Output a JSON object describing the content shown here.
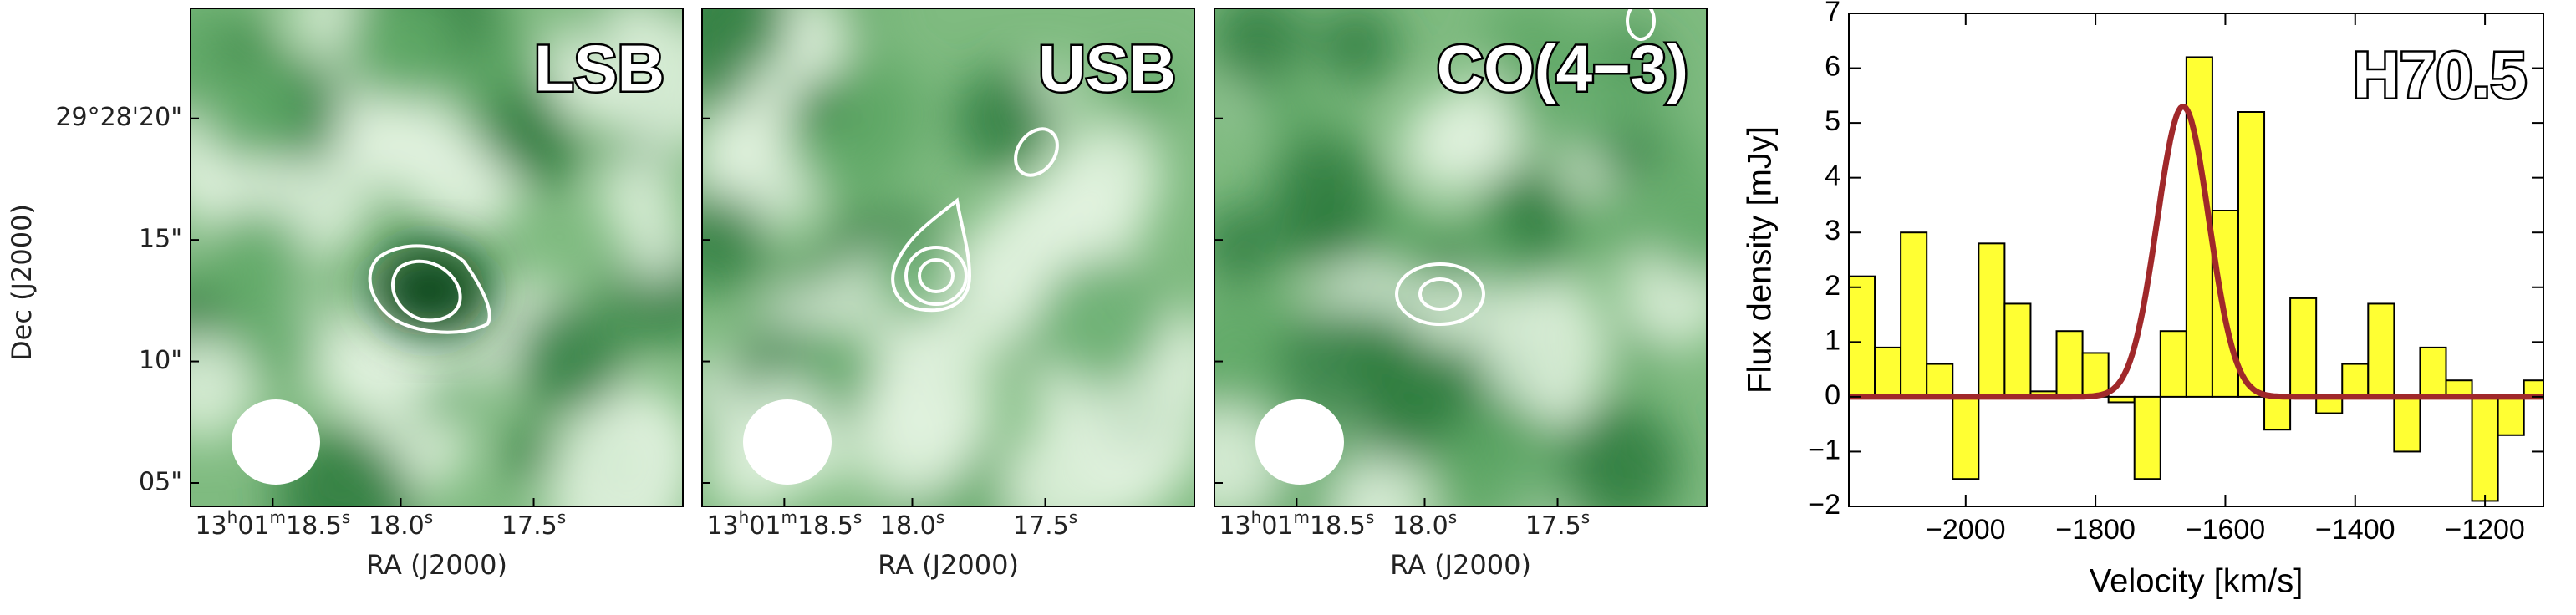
{
  "panels": [
    {
      "label": "LSB"
    },
    {
      "label": "USB"
    },
    {
      "label": "CO(4−3)"
    }
  ],
  "ra_label": "RA (J2000)",
  "dec_label": "Dec (J2000)",
  "ra_ticks": [
    "13h01m18.5s",
    "18.0s",
    "17.5s"
  ],
  "dec_ticks": [
    "29°28'20\"",
    "15\"",
    "10\"",
    "05\""
  ],
  "chart_data": {
    "type": "histogram",
    "title": "H70.5",
    "xlabel": "Velocity [km/s]",
    "ylabel": "Flux density [mJy]",
    "bins": [
      -2180,
      -2140,
      -2100,
      -2060,
      -2020,
      -1980,
      -1940,
      -1900,
      -1860,
      -1820,
      -1780,
      -1740,
      -1700,
      -1660,
      -1620,
      -1580,
      -1540,
      -1500,
      -1460,
      -1420,
      -1380,
      -1340,
      -1300,
      -1260,
      -1220,
      -1180,
      -1140,
      -1100
    ],
    "counts": [
      2.2,
      0.9,
      3.0,
      0.6,
      -1.5,
      2.8,
      1.7,
      0.1,
      1.2,
      0.8,
      -0.1,
      -1.5,
      1.2,
      6.2,
      3.4,
      5.2,
      -0.6,
      1.8,
      -0.3,
      0.6,
      1.7,
      -1.0,
      0.9,
      0.3,
      -1.9,
      -0.7,
      0.3
    ],
    "color": "#ffff33",
    "fit": {
      "amplitude": 5.3,
      "center": -1665,
      "sigma": 40,
      "color": "#a0282a"
    },
    "xlim": [
      -2180,
      -1110
    ],
    "ylim": [
      -2,
      7
    ],
    "xticks": [
      {
        "value": -2000,
        "label": "−2000"
      },
      {
        "value": -1800,
        "label": "−1800"
      },
      {
        "value": -1600,
        "label": "−1600"
      },
      {
        "value": -1400,
        "label": "−1400"
      },
      {
        "value": -1200,
        "label": "−1200"
      }
    ],
    "yticks": [
      {
        "value": -2,
        "label": "−2"
      },
      {
        "value": -1,
        "label": "−1"
      },
      0,
      1,
      2,
      3,
      4,
      5,
      6,
      7
    ]
  }
}
